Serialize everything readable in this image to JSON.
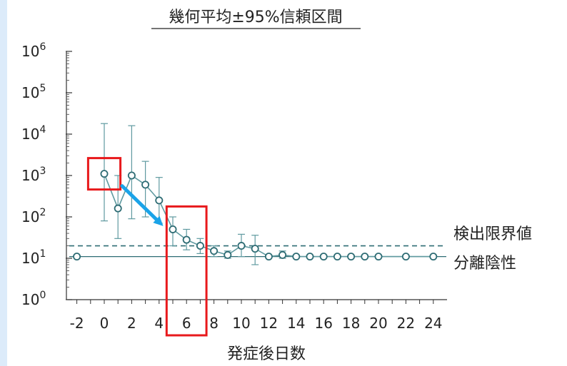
{
  "chart_data": {
    "type": "scatter",
    "title": "幾何平均±95%信頼区間",
    "xlabel": "発症後日数",
    "ylabel": "",
    "y_scale": "log10",
    "ylim_exponent": [
      0,
      6
    ],
    "xlim": [
      -3,
      25
    ],
    "x_ticks": [
      -2,
      0,
      2,
      4,
      6,
      8,
      10,
      12,
      14,
      16,
      18,
      20,
      22,
      24
    ],
    "y_tick_exponents": [
      0,
      1,
      2,
      3,
      4,
      5,
      6
    ],
    "y_tick_base": "10",
    "series": [
      {
        "connected_from_day": 0,
        "points": [
          {
            "x": -2,
            "y": 11
          },
          {
            "x": 0,
            "y": 1100,
            "lo": 80,
            "hi": 18000
          },
          {
            "x": 1,
            "y": 160,
            "lo": 30,
            "hi": 1000
          },
          {
            "x": 2,
            "y": 1000,
            "lo": 90,
            "hi": 16000
          },
          {
            "x": 3,
            "y": 600,
            "lo": 100,
            "hi": 2200
          },
          {
            "x": 4,
            "y": 250,
            "lo": 70,
            "hi": 900
          },
          {
            "x": 5,
            "y": 50,
            "lo": 20,
            "hi": 100
          },
          {
            "x": 6,
            "y": 28,
            "lo": 16,
            "hi": 50
          },
          {
            "x": 7,
            "y": 20,
            "lo": 13,
            "hi": 30
          },
          {
            "x": 8,
            "y": 15,
            "lo": 11,
            "hi": 20
          },
          {
            "x": 9,
            "y": 12,
            "lo": 10,
            "hi": 15
          },
          {
            "x": 10,
            "y": 20,
            "lo": 11,
            "hi": 38
          },
          {
            "x": 11,
            "y": 17,
            "lo": 7,
            "hi": 36
          },
          {
            "x": 12,
            "y": 11
          },
          {
            "x": 13,
            "y": 12,
            "lo": 10,
            "hi": 15
          },
          {
            "x": 14,
            "y": 11
          },
          {
            "x": 15,
            "y": 11
          },
          {
            "x": 16,
            "y": 11
          },
          {
            "x": 17,
            "y": 11
          },
          {
            "x": 18,
            "y": 11
          },
          {
            "x": 19,
            "y": 11
          },
          {
            "x": 20,
            "y": 11
          },
          {
            "x": 22,
            "y": 11
          },
          {
            "x": 24,
            "y": 11
          }
        ]
      }
    ],
    "reference_lines": [
      {
        "label": "検出限界値",
        "y": 20,
        "style": "dashed"
      },
      {
        "label": "分離陰性",
        "y": 11,
        "style": "solid"
      }
    ],
    "annotations": {
      "highlight_boxes": [
        {
          "x_from": -0.5,
          "x_to": 0.5,
          "y_center": 1100
        },
        {
          "x_from": 4.6,
          "x_to": 7.4,
          "y_top": 130,
          "y_bottom": 0.3
        }
      ],
      "arrow": {
        "from_x": 1.3,
        "from_y": 560,
        "to_x": 4.3,
        "to_y": 60
      }
    },
    "colors": {
      "series": "#5f9aa0",
      "marker_edge": "#2e6c74",
      "reference": "#2e6c74",
      "highlight": "#e8191c",
      "arrow": "#1aa3e8",
      "background": "#dcebfa"
    }
  }
}
